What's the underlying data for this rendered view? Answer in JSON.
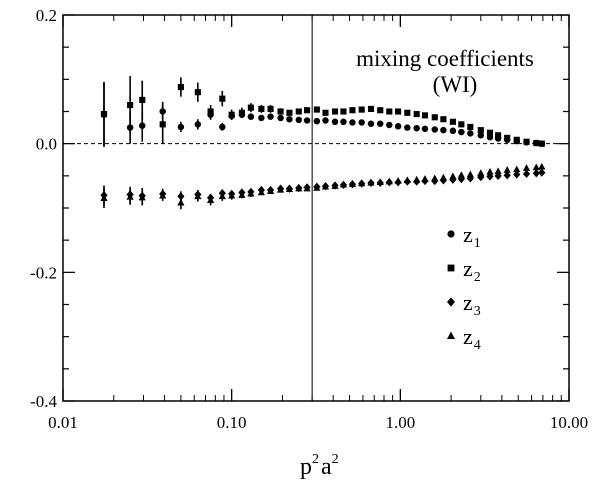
{
  "chart_data": {
    "type": "scatter",
    "title": "",
    "annotation": [
      "mixing coefficients",
      "(WI)"
    ],
    "xlabel": {
      "base_p": "p",
      "sup_1": "2",
      "base_a": "a",
      "sup_2": "2"
    },
    "ylabel": "",
    "xscale": "log",
    "xlim": [
      0.01,
      10.0
    ],
    "ylim": [
      -0.4,
      0.2
    ],
    "x_ticks": [
      0.01,
      0.1,
      1.0,
      10.0
    ],
    "x_tick_labels": [
      "0.01",
      "0.10",
      "1.00",
      "10.00"
    ],
    "y_ticks": [
      -0.4,
      -0.2,
      0.0,
      0.2
    ],
    "y_tick_labels": [
      "-0.4",
      "-0.2",
      "0.0",
      "0.2"
    ],
    "vertical_line_x": 0.3,
    "zero_line": {
      "y": 0.0,
      "style": "dashed"
    },
    "legend_position": "right",
    "series": [
      {
        "name": "z",
        "sub": "1",
        "marker": "circle",
        "points": [
          {
            "x": 0.0175,
            "y": 0.045,
            "err": 0.05
          },
          {
            "x": 0.025,
            "y": 0.025,
            "err": 0.025
          },
          {
            "x": 0.0295,
            "y": 0.028,
            "err": 0.025
          },
          {
            "x": 0.039,
            "y": 0.05,
            "err": 0.015
          },
          {
            "x": 0.05,
            "y": 0.026,
            "err": 0.008
          },
          {
            "x": 0.063,
            "y": 0.03,
            "err": 0.008
          },
          {
            "x": 0.075,
            "y": 0.045,
            "err": 0.008
          },
          {
            "x": 0.088,
            "y": 0.026,
            "err": 0.006
          },
          {
            "x": 0.1,
            "y": 0.043,
            "err": 0.006
          },
          {
            "x": 0.115,
            "y": 0.045,
            "err": 0.005
          },
          {
            "x": 0.13,
            "y": 0.042,
            "err": 0.005
          },
          {
            "x": 0.15,
            "y": 0.04,
            "err": 0.004
          },
          {
            "x": 0.17,
            "y": 0.042,
            "err": 0.004
          },
          {
            "x": 0.195,
            "y": 0.04,
            "err": 0.003
          },
          {
            "x": 0.22,
            "y": 0.038,
            "err": 0.003
          },
          {
            "x": 0.25,
            "y": 0.037,
            "err": 0.003
          },
          {
            "x": 0.28,
            "y": 0.036,
            "err": 0.003
          },
          {
            "x": 0.32,
            "y": 0.035,
            "err": 0.002
          },
          {
            "x": 0.36,
            "y": 0.036,
            "err": 0
          },
          {
            "x": 0.41,
            "y": 0.034,
            "err": 0
          },
          {
            "x": 0.46,
            "y": 0.034,
            "err": 0
          },
          {
            "x": 0.52,
            "y": 0.033,
            "err": 0
          },
          {
            "x": 0.59,
            "y": 0.033,
            "err": 0
          },
          {
            "x": 0.67,
            "y": 0.031,
            "err": 0
          },
          {
            "x": 0.76,
            "y": 0.031,
            "err": 0
          },
          {
            "x": 0.86,
            "y": 0.029,
            "err": 0
          },
          {
            "x": 0.97,
            "y": 0.027,
            "err": 0
          },
          {
            "x": 1.1,
            "y": 0.025,
            "err": 0
          },
          {
            "x": 1.25,
            "y": 0.024,
            "err": 0
          },
          {
            "x": 1.4,
            "y": 0.023,
            "err": 0
          },
          {
            "x": 1.6,
            "y": 0.022,
            "err": 0
          },
          {
            "x": 1.8,
            "y": 0.021,
            "err": 0
          },
          {
            "x": 2.05,
            "y": 0.02,
            "err": 0
          },
          {
            "x": 2.3,
            "y": 0.018,
            "err": 0
          },
          {
            "x": 2.6,
            "y": 0.016,
            "err": 0
          },
          {
            "x": 3.0,
            "y": 0.013,
            "err": 0
          },
          {
            "x": 3.4,
            "y": 0.01,
            "err": 0
          },
          {
            "x": 3.8,
            "y": 0.008,
            "err": 0
          },
          {
            "x": 4.3,
            "y": 0.006,
            "err": 0
          },
          {
            "x": 4.9,
            "y": 0.004,
            "err": 0
          },
          {
            "x": 5.6,
            "y": 0.002,
            "err": 0
          },
          {
            "x": 6.4,
            "y": 0.001,
            "err": 0
          },
          {
            "x": 6.9,
            "y": 0.0,
            "err": 0
          }
        ]
      },
      {
        "name": "z",
        "sub": "2",
        "marker": "square",
        "points": [
          {
            "x": 0.0175,
            "y": 0.046,
            "err": 0.05
          },
          {
            "x": 0.025,
            "y": 0.06,
            "err": 0.045
          },
          {
            "x": 0.0295,
            "y": 0.068,
            "err": 0.03
          },
          {
            "x": 0.039,
            "y": 0.03,
            "err": 0.03
          },
          {
            "x": 0.05,
            "y": 0.088,
            "err": 0.015
          },
          {
            "x": 0.063,
            "y": 0.08,
            "err": 0.015
          },
          {
            "x": 0.075,
            "y": 0.05,
            "err": 0.01
          },
          {
            "x": 0.088,
            "y": 0.07,
            "err": 0.012
          },
          {
            "x": 0.1,
            "y": 0.045,
            "err": 0.008
          },
          {
            "x": 0.115,
            "y": 0.048,
            "err": 0.008
          },
          {
            "x": 0.13,
            "y": 0.056,
            "err": 0.007
          },
          {
            "x": 0.15,
            "y": 0.054,
            "err": 0.006
          },
          {
            "x": 0.17,
            "y": 0.054,
            "err": 0.006
          },
          {
            "x": 0.195,
            "y": 0.05,
            "err": 0.005
          },
          {
            "x": 0.22,
            "y": 0.048,
            "err": 0.004
          },
          {
            "x": 0.25,
            "y": 0.05,
            "err": 0.004
          },
          {
            "x": 0.28,
            "y": 0.052,
            "err": 0.003
          },
          {
            "x": 0.32,
            "y": 0.053,
            "err": 0.003
          },
          {
            "x": 0.36,
            "y": 0.048,
            "err": 0
          },
          {
            "x": 0.41,
            "y": 0.05,
            "err": 0
          },
          {
            "x": 0.46,
            "y": 0.05,
            "err": 0
          },
          {
            "x": 0.52,
            "y": 0.052,
            "err": 0
          },
          {
            "x": 0.59,
            "y": 0.053,
            "err": 0
          },
          {
            "x": 0.67,
            "y": 0.054,
            "err": 0
          },
          {
            "x": 0.76,
            "y": 0.052,
            "err": 0
          },
          {
            "x": 0.86,
            "y": 0.05,
            "err": 0
          },
          {
            "x": 0.97,
            "y": 0.05,
            "err": 0
          },
          {
            "x": 1.1,
            "y": 0.048,
            "err": 0
          },
          {
            "x": 1.25,
            "y": 0.046,
            "err": 0
          },
          {
            "x": 1.4,
            "y": 0.044,
            "err": 0
          },
          {
            "x": 1.6,
            "y": 0.041,
            "err": 0
          },
          {
            "x": 1.8,
            "y": 0.038,
            "err": 0
          },
          {
            "x": 2.05,
            "y": 0.034,
            "err": 0
          },
          {
            "x": 2.3,
            "y": 0.03,
            "err": 0
          },
          {
            "x": 2.6,
            "y": 0.026,
            "err": 0
          },
          {
            "x": 3.0,
            "y": 0.021,
            "err": 0
          },
          {
            "x": 3.4,
            "y": 0.017,
            "err": 0
          },
          {
            "x": 3.8,
            "y": 0.013,
            "err": 0
          },
          {
            "x": 4.3,
            "y": 0.009,
            "err": 0
          },
          {
            "x": 4.9,
            "y": 0.006,
            "err": 0
          },
          {
            "x": 5.6,
            "y": 0.003,
            "err": 0
          },
          {
            "x": 6.4,
            "y": 0.001,
            "err": 0
          },
          {
            "x": 6.9,
            "y": 0.0,
            "err": 0
          }
        ]
      },
      {
        "name": "z",
        "sub": "3",
        "marker": "diamond",
        "points": [
          {
            "x": 0.0175,
            "y": -0.08,
            "err": 0.015
          },
          {
            "x": 0.025,
            "y": -0.079,
            "err": 0.012
          },
          {
            "x": 0.0295,
            "y": -0.081,
            "err": 0.012
          },
          {
            "x": 0.039,
            "y": -0.078,
            "err": 0.008
          },
          {
            "x": 0.05,
            "y": -0.082,
            "err": 0.008
          },
          {
            "x": 0.063,
            "y": -0.079,
            "err": 0.007
          },
          {
            "x": 0.075,
            "y": -0.084,
            "err": 0.006
          },
          {
            "x": 0.088,
            "y": -0.077,
            "err": 0.006
          },
          {
            "x": 0.1,
            "y": -0.078,
            "err": 0.005
          },
          {
            "x": 0.115,
            "y": -0.076,
            "err": 0.005
          },
          {
            "x": 0.13,
            "y": -0.075,
            "err": 0.004
          },
          {
            "x": 0.15,
            "y": -0.072,
            "err": 0.004
          },
          {
            "x": 0.17,
            "y": -0.072,
            "err": 0.004
          },
          {
            "x": 0.195,
            "y": -0.07,
            "err": 0.003
          },
          {
            "x": 0.22,
            "y": -0.07,
            "err": 0.003
          },
          {
            "x": 0.25,
            "y": -0.069,
            "err": 0.003
          },
          {
            "x": 0.28,
            "y": -0.068,
            "err": 0.003
          },
          {
            "x": 0.32,
            "y": -0.067,
            "err": 0.002
          },
          {
            "x": 0.36,
            "y": -0.066,
            "err": 0
          },
          {
            "x": 0.41,
            "y": -0.065,
            "err": 0
          },
          {
            "x": 0.46,
            "y": -0.064,
            "err": 0
          },
          {
            "x": 0.52,
            "y": -0.063,
            "err": 0
          },
          {
            "x": 0.59,
            "y": -0.062,
            "err": 0
          },
          {
            "x": 0.67,
            "y": -0.061,
            "err": 0
          },
          {
            "x": 0.76,
            "y": -0.061,
            "err": 0
          },
          {
            "x": 0.86,
            "y": -0.06,
            "err": 0
          },
          {
            "x": 0.97,
            "y": -0.06,
            "err": 0
          },
          {
            "x": 1.1,
            "y": -0.059,
            "err": 0
          },
          {
            "x": 1.25,
            "y": -0.059,
            "err": 0
          },
          {
            "x": 1.4,
            "y": -0.058,
            "err": 0
          },
          {
            "x": 1.6,
            "y": -0.058,
            "err": 0
          },
          {
            "x": 1.8,
            "y": -0.057,
            "err": 0
          },
          {
            "x": 2.05,
            "y": -0.056,
            "err": 0
          },
          {
            "x": 2.3,
            "y": -0.055,
            "err": 0
          },
          {
            "x": 2.6,
            "y": -0.054,
            "err": 0
          },
          {
            "x": 3.0,
            "y": -0.052,
            "err": 0
          },
          {
            "x": 3.4,
            "y": -0.051,
            "err": 0
          },
          {
            "x": 3.8,
            "y": -0.05,
            "err": 0
          },
          {
            "x": 4.3,
            "y": -0.049,
            "err": 0
          },
          {
            "x": 4.9,
            "y": -0.048,
            "err": 0
          },
          {
            "x": 5.6,
            "y": -0.047,
            "err": 0
          },
          {
            "x": 6.4,
            "y": -0.046,
            "err": 0
          },
          {
            "x": 6.9,
            "y": -0.045,
            "err": 0
          }
        ]
      },
      {
        "name": "z",
        "sub": "4",
        "marker": "triangle",
        "points": [
          {
            "x": 0.0175,
            "y": -0.085,
            "err": 0.015
          },
          {
            "x": 0.025,
            "y": -0.083,
            "err": 0.012
          },
          {
            "x": 0.0295,
            "y": -0.084,
            "err": 0.012
          },
          {
            "x": 0.039,
            "y": -0.081,
            "err": 0.008
          },
          {
            "x": 0.05,
            "y": -0.092,
            "err": 0.01
          },
          {
            "x": 0.063,
            "y": -0.082,
            "err": 0.008
          },
          {
            "x": 0.075,
            "y": -0.088,
            "err": 0.008
          },
          {
            "x": 0.088,
            "y": -0.082,
            "err": 0.007
          },
          {
            "x": 0.1,
            "y": -0.081,
            "err": 0.006
          },
          {
            "x": 0.115,
            "y": -0.08,
            "err": 0.005
          },
          {
            "x": 0.13,
            "y": -0.078,
            "err": 0.005
          },
          {
            "x": 0.15,
            "y": -0.076,
            "err": 0.004
          },
          {
            "x": 0.17,
            "y": -0.074,
            "err": 0.004
          },
          {
            "x": 0.195,
            "y": -0.072,
            "err": 0.004
          },
          {
            "x": 0.22,
            "y": -0.071,
            "err": 0.003
          },
          {
            "x": 0.25,
            "y": -0.07,
            "err": 0.003
          },
          {
            "x": 0.28,
            "y": -0.07,
            "err": 0.003
          },
          {
            "x": 0.32,
            "y": -0.069,
            "err": 0.002
          },
          {
            "x": 0.36,
            "y": -0.067,
            "err": 0
          },
          {
            "x": 0.41,
            "y": -0.066,
            "err": 0
          },
          {
            "x": 0.46,
            "y": -0.064,
            "err": 0
          },
          {
            "x": 0.52,
            "y": -0.063,
            "err": 0
          },
          {
            "x": 0.59,
            "y": -0.062,
            "err": 0
          },
          {
            "x": 0.67,
            "y": -0.061,
            "err": 0
          },
          {
            "x": 0.76,
            "y": -0.06,
            "err": 0
          },
          {
            "x": 0.86,
            "y": -0.059,
            "err": 0
          },
          {
            "x": 0.97,
            "y": -0.058,
            "err": 0
          },
          {
            "x": 1.1,
            "y": -0.057,
            "err": 0
          },
          {
            "x": 1.25,
            "y": -0.056,
            "err": 0
          },
          {
            "x": 1.4,
            "y": -0.055,
            "err": 0
          },
          {
            "x": 1.6,
            "y": -0.054,
            "err": 0
          },
          {
            "x": 1.8,
            "y": -0.053,
            "err": 0
          },
          {
            "x": 2.05,
            "y": -0.051,
            "err": 0
          },
          {
            "x": 2.3,
            "y": -0.049,
            "err": 0
          },
          {
            "x": 2.6,
            "y": -0.048,
            "err": 0
          },
          {
            "x": 3.0,
            "y": -0.046,
            "err": 0
          },
          {
            "x": 3.4,
            "y": -0.044,
            "err": 0
          },
          {
            "x": 3.8,
            "y": -0.043,
            "err": 0
          },
          {
            "x": 4.3,
            "y": -0.041,
            "err": 0
          },
          {
            "x": 4.9,
            "y": -0.04,
            "err": 0
          },
          {
            "x": 5.6,
            "y": -0.038,
            "err": 0
          },
          {
            "x": 6.4,
            "y": -0.037,
            "err": 0
          },
          {
            "x": 6.9,
            "y": -0.036,
            "err": 0
          }
        ]
      }
    ]
  }
}
